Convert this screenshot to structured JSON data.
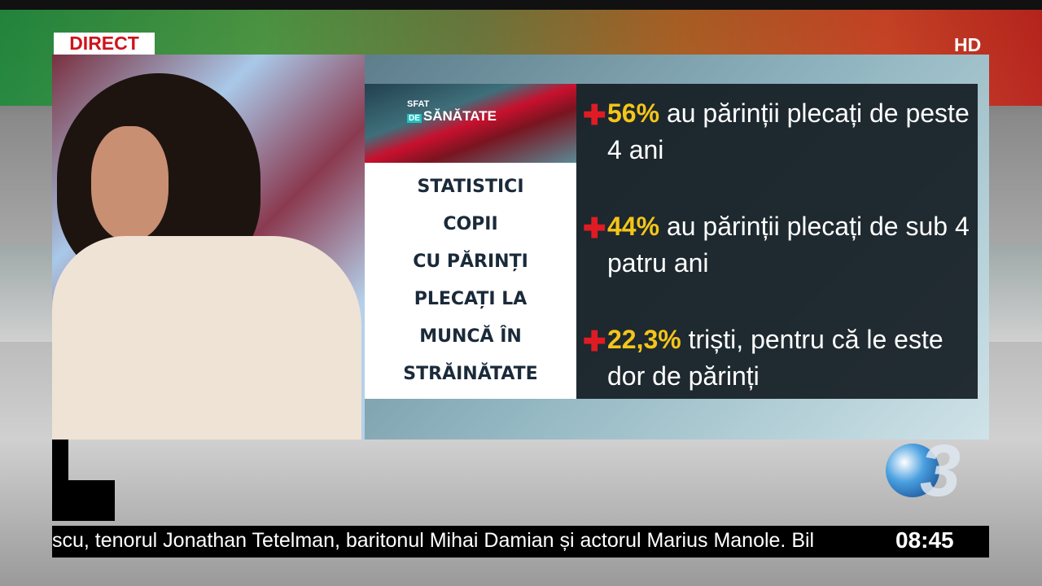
{
  "overlay": {
    "live_badge": "DIRECT",
    "quality_badge": "HD"
  },
  "show_logo": {
    "line1": "SFAT",
    "line2_prefix": "DE",
    "line2": "SĂNĂTATE"
  },
  "title_lines": [
    "STATISTICI",
    "COPII",
    "CU PĂRINȚI",
    "PLECAȚI LA",
    "MUNCĂ ÎN",
    "STRĂINĂTATE"
  ],
  "stats": [
    {
      "icon": "plus-icon",
      "percent": "56%",
      "text": " au părinții plecați de peste 4 ani"
    },
    {
      "icon": "plus-icon",
      "percent": "44%",
      "text": " au părinții plecați de sub 4 patru ani"
    },
    {
      "icon": "plus-icon",
      "percent": "22,3%",
      "text": " triști, pentru că le este dor de părinți"
    }
  ],
  "ticker": {
    "text": "scu, tenorul Jonathan Tetelman, baritonul Mihai Damian și actorul Marius Manole. Bil",
    "time": "08:45"
  },
  "colors": {
    "accent_red": "#e01b24",
    "percent_yellow": "#f5c518",
    "live_red": "#d0121b"
  }
}
